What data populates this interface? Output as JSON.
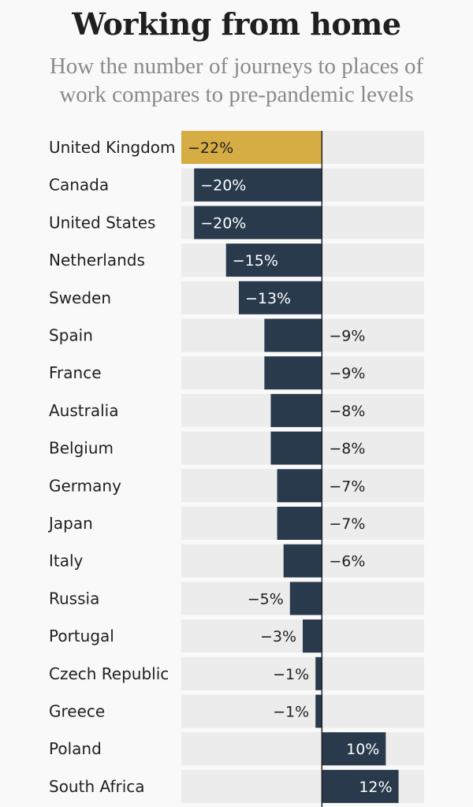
{
  "colors": {
    "highlight": "#d6ad45",
    "bar": "#283a4b",
    "row_bg": "#ececec",
    "label_on_bar": "#ffffff",
    "label_on_highlight": "#1f1f1f",
    "label_outside": "#1f1f1f"
  },
  "chart_data": {
    "type": "bar",
    "orientation": "horizontal",
    "title": "Working from home",
    "subtitle": "How the number of journeys to places of work compares to pre-pandemic levels",
    "xlim": [
      -22,
      16
    ],
    "highlight": "United Kingdom",
    "categories": [
      "United Kingdom",
      "Canada",
      "United States",
      "Netherlands",
      "Sweden",
      "Spain",
      "France",
      "Australia",
      "Belgium",
      "Germany",
      "Japan",
      "Italy",
      "Russia",
      "Portugal",
      "Czech Republic",
      "Greece",
      "Poland",
      "South Africa"
    ],
    "values": [
      -22,
      -20,
      -20,
      -15,
      -13,
      -9,
      -9,
      -8,
      -8,
      -7,
      -7,
      -6,
      -5,
      -3,
      -1,
      -1,
      10,
      12
    ],
    "value_labels": [
      "−22%",
      "−20%",
      "−20%",
      "−15%",
      "−13%",
      "−9%",
      "−9%",
      "−8%",
      "−8%",
      "−7%",
      "−7%",
      "−6%",
      "−5%",
      "−3%",
      "−1%",
      "−1%",
      "10%",
      "12%"
    ]
  }
}
